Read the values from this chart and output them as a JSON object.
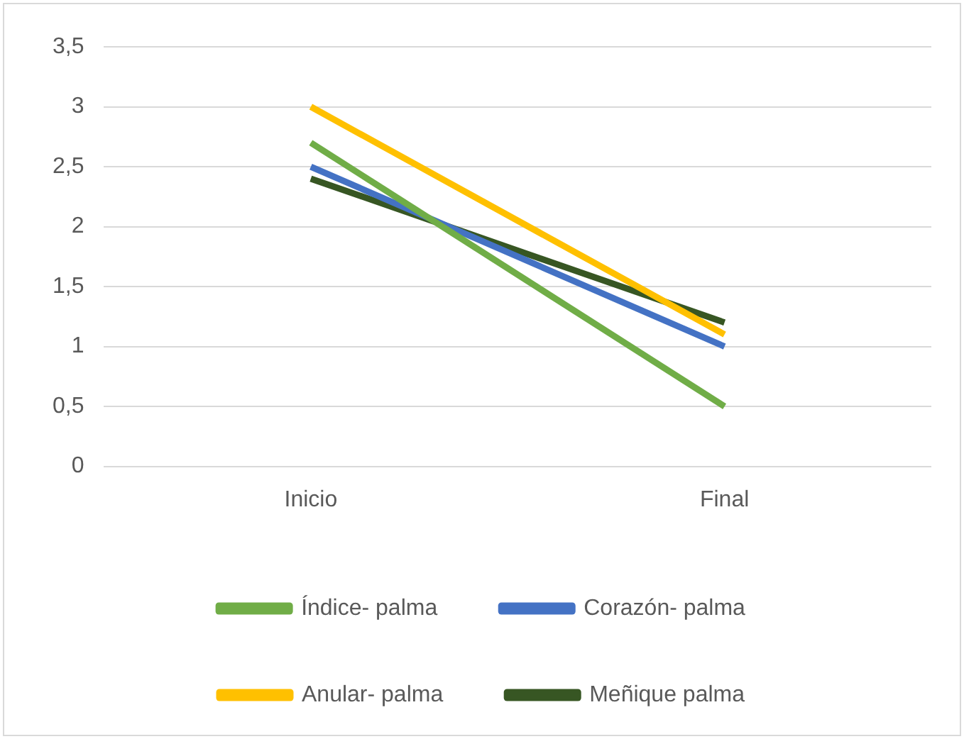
{
  "chart_data": {
    "type": "line",
    "categories": [
      "Inicio",
      "Final"
    ],
    "series": [
      {
        "name": "Índice- palma",
        "color": "#70ad47",
        "values": [
          2.7,
          0.5
        ]
      },
      {
        "name": "Corazón- palma",
        "color": "#4472c4",
        "values": [
          2.5,
          1.0
        ]
      },
      {
        "name": "Anular- palma",
        "color": "#ffc000",
        "values": [
          3.0,
          1.1
        ]
      },
      {
        "name": "Meñique palma",
        "color": "#375623",
        "values": [
          2.4,
          1.2
        ]
      }
    ],
    "ylim": [
      0,
      3.5
    ],
    "yticks": [
      0,
      {
        "value": 0.5,
        "label": "0,5"
      },
      1,
      {
        "value": 1.5,
        "label": "1,5"
      },
      2,
      {
        "value": 2.5,
        "label": "2,5"
      },
      3,
      {
        "value": 3.5,
        "label": "3,5"
      }
    ],
    "grid": "y",
    "legend": "bottom",
    "marker": "none",
    "line_style": "solid"
  }
}
